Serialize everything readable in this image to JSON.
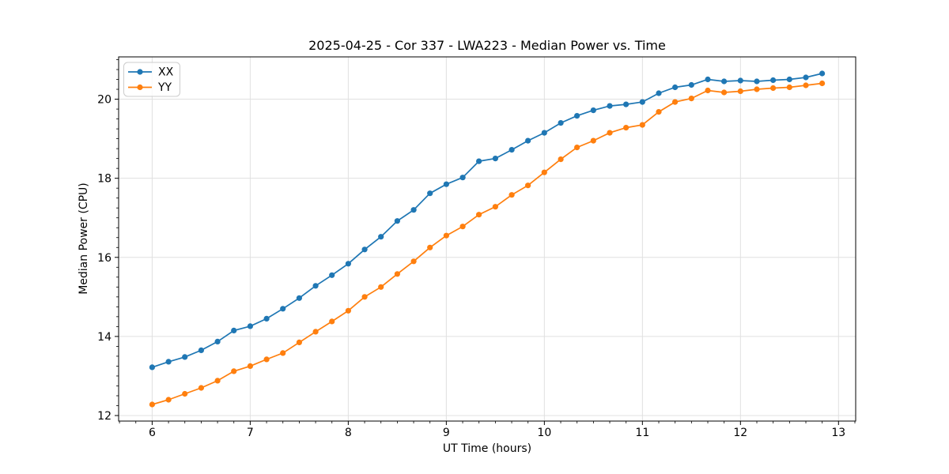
{
  "chart_data": {
    "type": "line",
    "title": "2025-04-25 - Cor 337 - LWA223 - Median Power vs. Time",
    "xlabel": "UT Time (hours)",
    "ylabel": "Median Power (CPU)",
    "xlim": [
      5.658,
      13.175
    ],
    "ylim": [
      11.86,
      21.07
    ],
    "x_ticks": [
      6,
      7,
      8,
      9,
      10,
      11,
      12,
      13
    ],
    "y_ticks": [
      12,
      14,
      16,
      18,
      20
    ],
    "x_minor_step": 0.16667,
    "y_minor_step": 0.25,
    "grid": true,
    "legend_position": "upper left",
    "x": [
      6.0,
      6.167,
      6.333,
      6.5,
      6.667,
      6.833,
      7.0,
      7.167,
      7.333,
      7.5,
      7.667,
      7.833,
      8.0,
      8.167,
      8.333,
      8.5,
      8.667,
      8.833,
      9.0,
      9.167,
      9.333,
      9.5,
      9.667,
      9.833,
      10.0,
      10.167,
      10.333,
      10.5,
      10.667,
      10.833,
      11.0,
      11.167,
      11.333,
      11.5,
      11.667,
      11.833,
      12.0,
      12.167,
      12.333,
      12.5,
      12.667,
      12.833
    ],
    "series": [
      {
        "name": "XX",
        "color": "#1f77b4",
        "values": [
          13.22,
          13.36,
          13.48,
          13.65,
          13.87,
          14.15,
          14.26,
          14.45,
          14.7,
          14.97,
          15.28,
          15.55,
          15.84,
          16.2,
          16.52,
          16.92,
          17.2,
          17.62,
          17.85,
          18.02,
          18.43,
          18.5,
          18.72,
          18.95,
          19.15,
          19.4,
          19.58,
          19.72,
          19.83,
          19.87,
          19.93,
          20.15,
          20.3,
          20.36,
          20.5,
          20.45,
          20.47,
          20.45,
          20.48,
          20.5,
          20.55,
          20.65
        ]
      },
      {
        "name": "YY",
        "color": "#ff7f0e",
        "values": [
          12.28,
          12.4,
          12.55,
          12.7,
          12.88,
          13.12,
          13.25,
          13.42,
          13.58,
          13.85,
          14.12,
          14.38,
          14.65,
          15.0,
          15.25,
          15.58,
          15.9,
          16.25,
          16.55,
          16.78,
          17.08,
          17.28,
          17.58,
          17.82,
          18.15,
          18.48,
          18.78,
          18.95,
          19.15,
          19.28,
          19.35,
          19.68,
          19.93,
          20.02,
          20.22,
          20.17,
          20.2,
          20.25,
          20.28,
          20.3,
          20.35,
          20.4
        ]
      }
    ],
    "style": {
      "grid_color": "#e0e0e0",
      "spine_color": "#000000",
      "background": "#ffffff",
      "legend_border": "#cccccc"
    }
  }
}
